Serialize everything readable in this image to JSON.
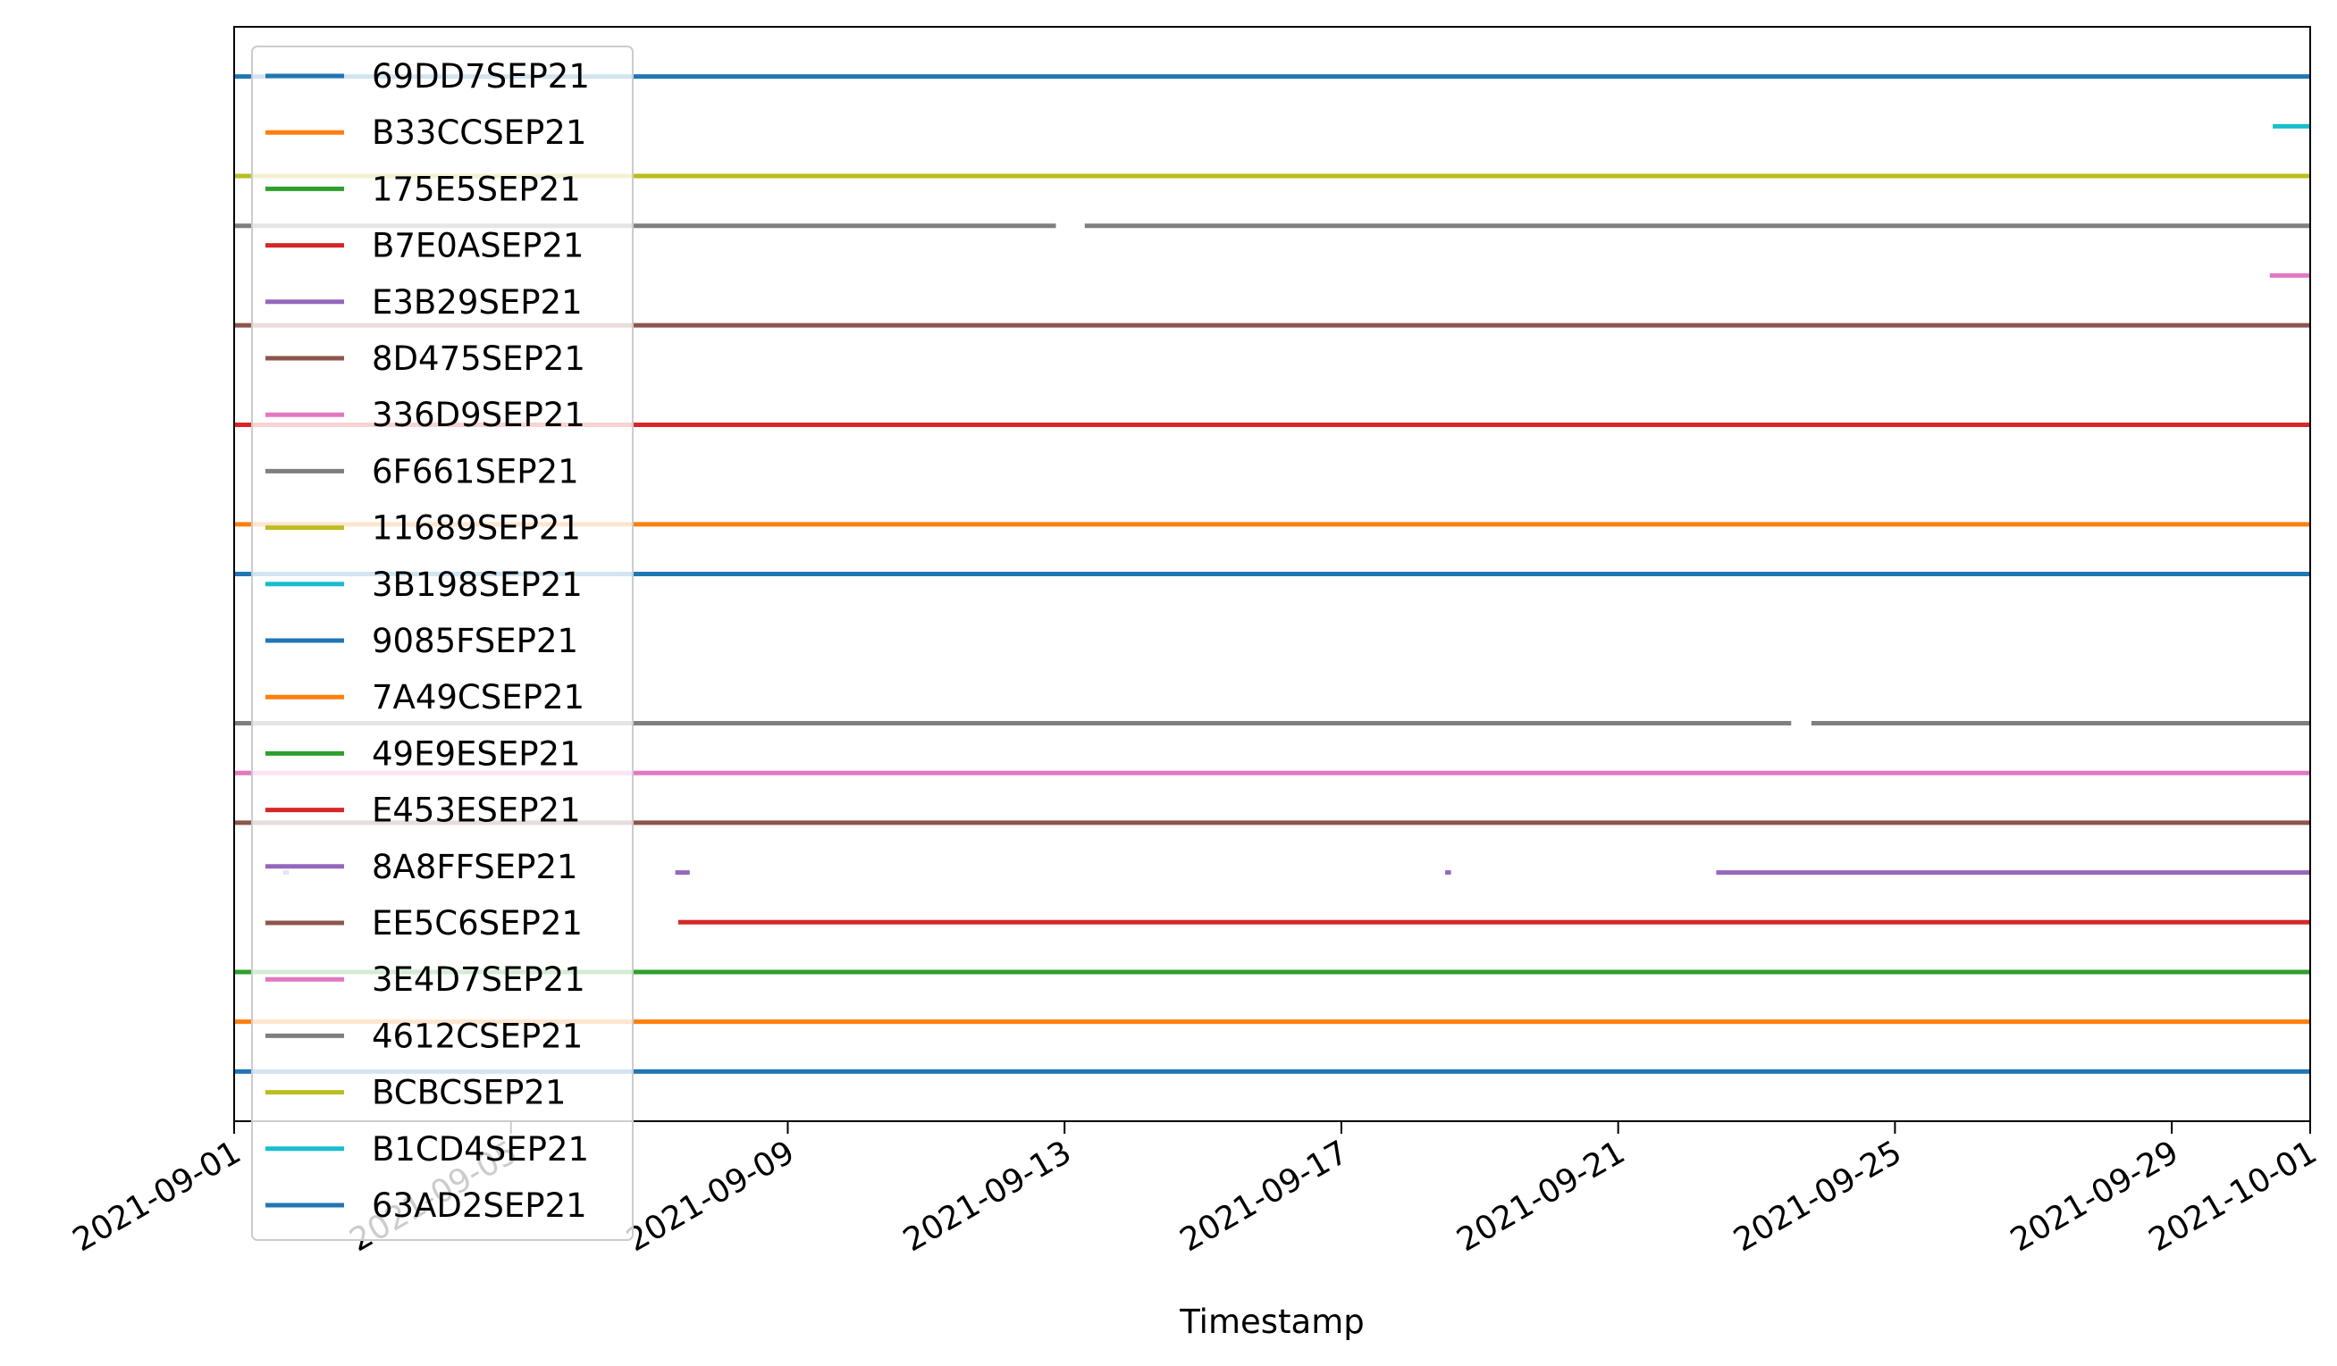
{
  "chart_data": {
    "type": "line",
    "title": "",
    "xlabel": "Timestamp",
    "ylabel": "",
    "xlim": [
      "2021-09-01",
      "2021-10-01"
    ],
    "ylim": [
      0,
      22
    ],
    "grid": false,
    "y_ticks_shown": false,
    "x_ticks": [
      "2021-09-01",
      "2021-09-05",
      "2021-09-09",
      "2021-09-13",
      "2021-09-17",
      "2021-09-21",
      "2021-09-25",
      "2021-09-29",
      "2021-10-01"
    ],
    "legend": {
      "position": "upper-left"
    },
    "series": [
      {
        "name": "69DD7SEP21",
        "color": "#1f77b4",
        "y": 21,
        "segments": [
          [
            "2021-09-01",
            "2021-10-01"
          ]
        ]
      },
      {
        "name": "B33CCSEP21",
        "color": "#ff7f0e",
        "y": 20,
        "segments": []
      },
      {
        "name": "175E5SEP21",
        "color": "#2ca02c",
        "y": 20,
        "segments": []
      },
      {
        "name": "B7E0ASEP21",
        "color": "#d62728",
        "y": 20,
        "segments": []
      },
      {
        "name": "E3B29SEP21",
        "color": "#9467bd",
        "y": 20,
        "segments": []
      },
      {
        "name": "8D475SEP21",
        "color": "#8c564b",
        "y": 16,
        "segments": [
          [
            "2021-09-01",
            "2021-10-01"
          ]
        ]
      },
      {
        "name": "336D9SEP21",
        "color": "#e377c2",
        "y": 17,
        "segments": [
          [
            "2021-09-30 10:00",
            "2021-10-01"
          ]
        ]
      },
      {
        "name": "6F661SEP21",
        "color": "#7f7f7f",
        "y": 18,
        "segments": [
          [
            "2021-09-01",
            "2021-09-12 21:00"
          ],
          [
            "2021-09-13 07:00",
            "2021-10-01"
          ]
        ]
      },
      {
        "name": "11689SEP21",
        "color": "#bcbd22",
        "y": 19,
        "segments": [
          [
            "2021-09-01",
            "2021-10-01"
          ]
        ]
      },
      {
        "name": "3B198SEP21",
        "color": "#17becf",
        "y": 20,
        "segments": [
          [
            "2021-09-30 11:00",
            "2021-10-01"
          ]
        ]
      },
      {
        "name": "9085FSEP21",
        "color": "#1f77b4",
        "y": 11,
        "segments": [
          [
            "2021-09-01",
            "2021-10-01"
          ]
        ]
      },
      {
        "name": "7A49CSEP21",
        "color": "#ff7f0e",
        "y": 12,
        "segments": [
          [
            "2021-09-01",
            "2021-10-01"
          ]
        ]
      },
      {
        "name": "49E9ESEP21",
        "color": "#2ca02c",
        "y": 15,
        "segments": []
      },
      {
        "name": "E453ESEP21",
        "color": "#d62728",
        "y": 14,
        "segments": [
          [
            "2021-09-01",
            "2021-10-01"
          ]
        ]
      },
      {
        "name": "8A8FFSEP21",
        "color": "#9467bd",
        "y": 5,
        "segments": [
          [
            "2021-09-01 17:00",
            "2021-09-01 19:00"
          ],
          [
            "2021-09-07 09:00",
            "2021-09-07 14:00"
          ],
          [
            "2021-09-18 12:00",
            "2021-09-18 14:00"
          ],
          [
            "2021-09-22 10:00",
            "2021-10-01"
          ]
        ]
      },
      {
        "name": "EE5C6SEP21",
        "color": "#8c564b",
        "y": 6,
        "segments": [
          [
            "2021-09-01",
            "2021-10-01"
          ]
        ]
      },
      {
        "name": "3E4D7SEP21",
        "color": "#e377c2",
        "y": 7,
        "segments": [
          [
            "2021-09-01",
            "2021-10-01"
          ]
        ]
      },
      {
        "name": "4612CSEP21",
        "color": "#7f7f7f",
        "y": 8,
        "segments": [
          [
            "2021-09-01",
            "2021-09-23 12:00"
          ],
          [
            "2021-09-23 19:00",
            "2021-10-01"
          ]
        ]
      },
      {
        "name": "BCBCSEP21",
        "color": "#bcbd22",
        "y": 3,
        "segments": []
      },
      {
        "name": "B1CD4SEP21",
        "color": "#17becf",
        "y": 3,
        "segments": []
      },
      {
        "name": "63AD2SEP21",
        "color": "#1f77b4",
        "y": 1,
        "segments": [
          [
            "2021-09-01",
            "2021-10-01"
          ]
        ]
      }
    ],
    "unlabeled_traces": [
      {
        "color": "#d62728",
        "y": 4,
        "segments": [
          [
            "2021-09-07 10:00",
            "2021-10-01"
          ]
        ]
      },
      {
        "color": "#2ca02c",
        "y": 3,
        "segments": [
          [
            "2021-09-01",
            "2021-10-01"
          ]
        ]
      },
      {
        "color": "#ff7f0e",
        "y": 2,
        "segments": [
          [
            "2021-09-01",
            "2021-10-01"
          ]
        ]
      }
    ]
  }
}
